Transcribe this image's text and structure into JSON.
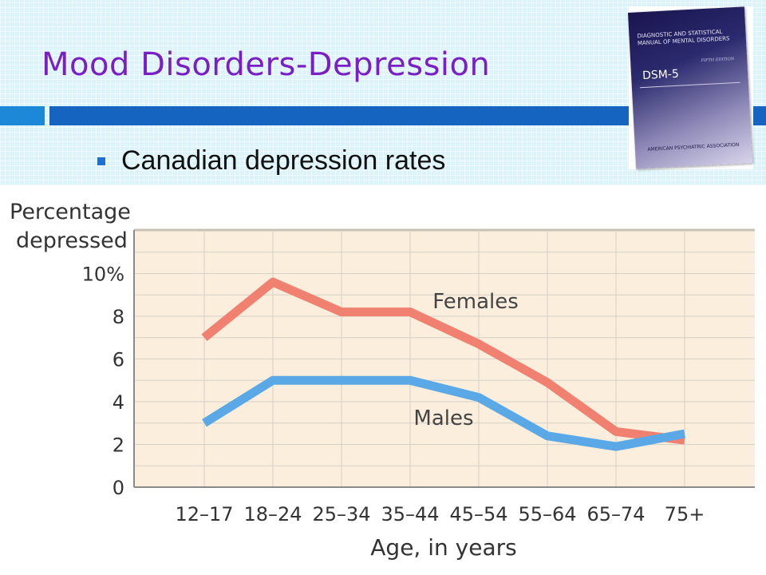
{
  "slide": {
    "title": "Mood Disorders-Depression",
    "bullet": "Canadian depression rates"
  },
  "book": {
    "title": "DIAGNOSTIC AND STATISTICAL MANUAL OF MENTAL DISORDERS",
    "edition": "FIFTH EDITION",
    "name": "DSM-5",
    "publisher": "AMERICAN PSYCHIATRIC ASSOCIATION"
  },
  "colors": {
    "title": "#7a1fc4",
    "accent_bar": "#1565c0",
    "plot_bg": "#fbeedd",
    "females": "#f08070",
    "males": "#5aa8e6"
  },
  "chart_data": {
    "type": "line",
    "ylabel": "Percentage depressed",
    "xlabel": "Age, in years",
    "categories": [
      "12–17",
      "18–24",
      "25–34",
      "35–44",
      "45–54",
      "55–64",
      "65–74",
      "75+"
    ],
    "yticks": [
      "0",
      "2",
      "4",
      "6",
      "8",
      "10%"
    ],
    "ylim": [
      0,
      12
    ],
    "grid": true,
    "series": [
      {
        "name": "Females",
        "values": [
          7.0,
          9.6,
          8.2,
          8.2,
          6.7,
          4.9,
          2.6,
          2.2
        ]
      },
      {
        "name": "Males",
        "values": [
          3.0,
          5.0,
          5.0,
          5.0,
          4.2,
          2.4,
          1.9,
          2.5
        ]
      }
    ]
  }
}
